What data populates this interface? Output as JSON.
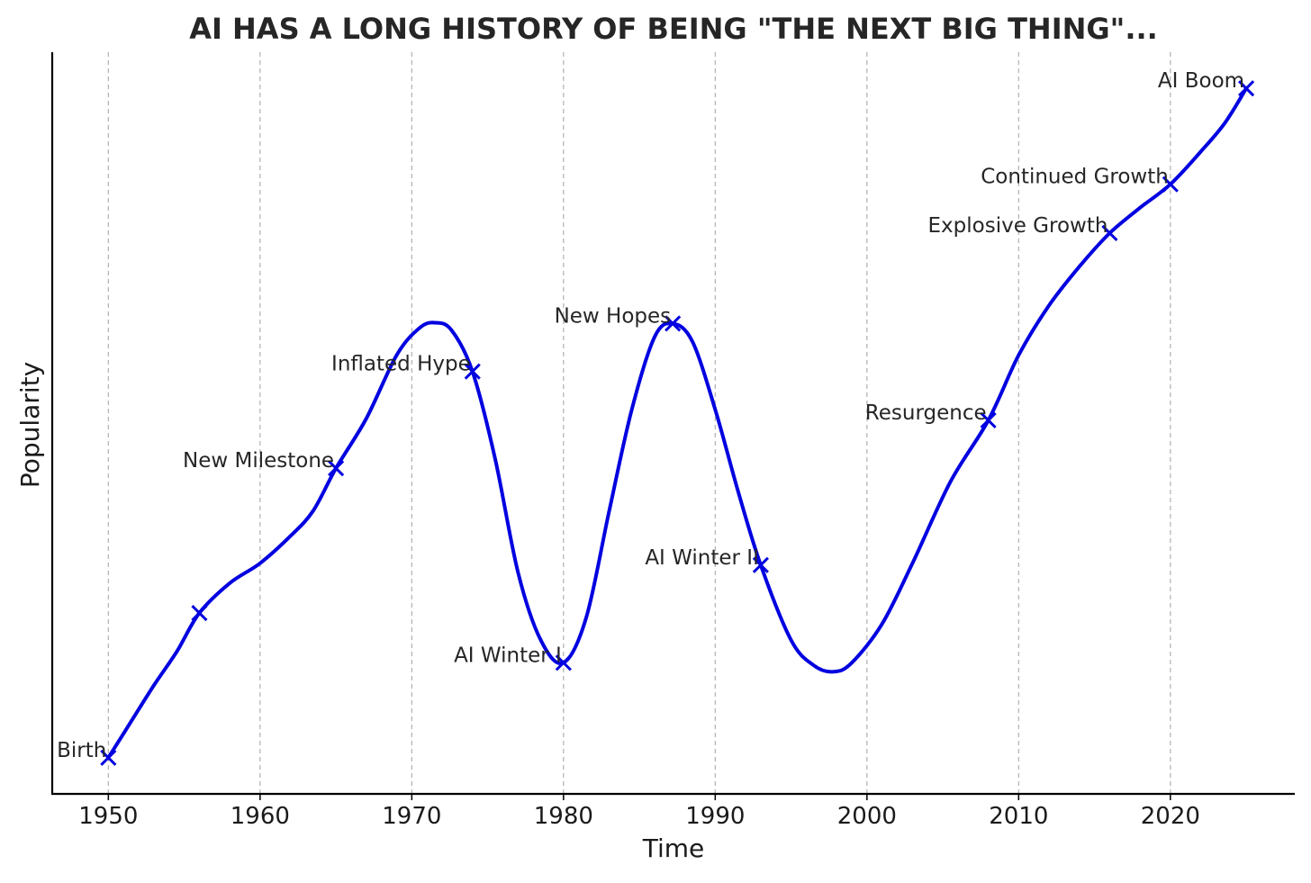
{
  "chart_data": {
    "type": "line",
    "title": "AI HAS A LONG HISTORY OF BEING \"THE NEXT BIG THING\"...",
    "xlabel": "Time",
    "ylabel": "Popularity",
    "xlim": [
      1946.3,
      2028.2
    ],
    "ylim": [
      0.5,
      8.7
    ],
    "x_ticks": [
      1950,
      1960,
      1970,
      1980,
      1990,
      2000,
      2010,
      2020
    ],
    "y_ticks_visible": false,
    "grid": "vertical dashed",
    "line_color": "#0000e0",
    "series": [
      {
        "points": [
          {
            "x": 1950,
            "y": 0.9,
            "label": "Birth"
          },
          {
            "x": 1956,
            "y": 2.5,
            "label": ""
          },
          {
            "x": 1965,
            "y": 4.1,
            "label": "New Milestone"
          },
          {
            "x": 1974,
            "y": 5.17,
            "label": "Inflated Hype"
          },
          {
            "x": 1980,
            "y": 1.95,
            "label": "AI Winter I"
          },
          {
            "x": 1987.2,
            "y": 5.7,
            "label": "New Hopes"
          },
          {
            "x": 1993,
            "y": 3.03,
            "label": "AI Winter II"
          },
          {
            "x": 2008,
            "y": 4.63,
            "label": "Resurgence"
          },
          {
            "x": 2016,
            "y": 6.7,
            "label": "Explosive Growth"
          },
          {
            "x": 2020,
            "y": 7.24,
            "label": "Continued Growth"
          },
          {
            "x": 2025,
            "y": 8.3,
            "label": "AI Boom"
          }
        ],
        "curve": [
          [
            1950,
            0.9
          ],
          [
            1951.5,
            1.3
          ],
          [
            1953,
            1.7
          ],
          [
            1954.5,
            2.07
          ],
          [
            1956,
            2.5
          ],
          [
            1958,
            2.83
          ],
          [
            1960,
            3.05
          ],
          [
            1962,
            3.35
          ],
          [
            1963.5,
            3.63
          ],
          [
            1965,
            4.1
          ],
          [
            1967,
            4.65
          ],
          [
            1969,
            5.35
          ],
          [
            1970.5,
            5.65
          ],
          [
            1971.5,
            5.71
          ],
          [
            1972.6,
            5.63
          ],
          [
            1974,
            5.17
          ],
          [
            1975.5,
            4.2
          ],
          [
            1977,
            2.95
          ],
          [
            1978.5,
            2.2
          ],
          [
            1980,
            1.95
          ],
          [
            1981.5,
            2.45
          ],
          [
            1983,
            3.62
          ],
          [
            1984.5,
            4.75
          ],
          [
            1986,
            5.55
          ],
          [
            1987.2,
            5.7
          ],
          [
            1988.5,
            5.5
          ],
          [
            1990,
            4.75
          ],
          [
            1991.5,
            3.85
          ],
          [
            1993,
            3.03
          ],
          [
            1995,
            2.2
          ],
          [
            1996.5,
            1.92
          ],
          [
            1997.8,
            1.85
          ],
          [
            1999,
            1.95
          ],
          [
            2001,
            2.38
          ],
          [
            2003,
            3.05
          ],
          [
            2005.5,
            3.95
          ],
          [
            2008,
            4.63
          ],
          [
            2010,
            5.35
          ],
          [
            2012,
            5.9
          ],
          [
            2014,
            6.33
          ],
          [
            2016,
            6.7
          ],
          [
            2018,
            6.98
          ],
          [
            2020,
            7.24
          ],
          [
            2022,
            7.6
          ],
          [
            2023.6,
            7.92
          ],
          [
            2025,
            8.3
          ]
        ]
      }
    ]
  }
}
